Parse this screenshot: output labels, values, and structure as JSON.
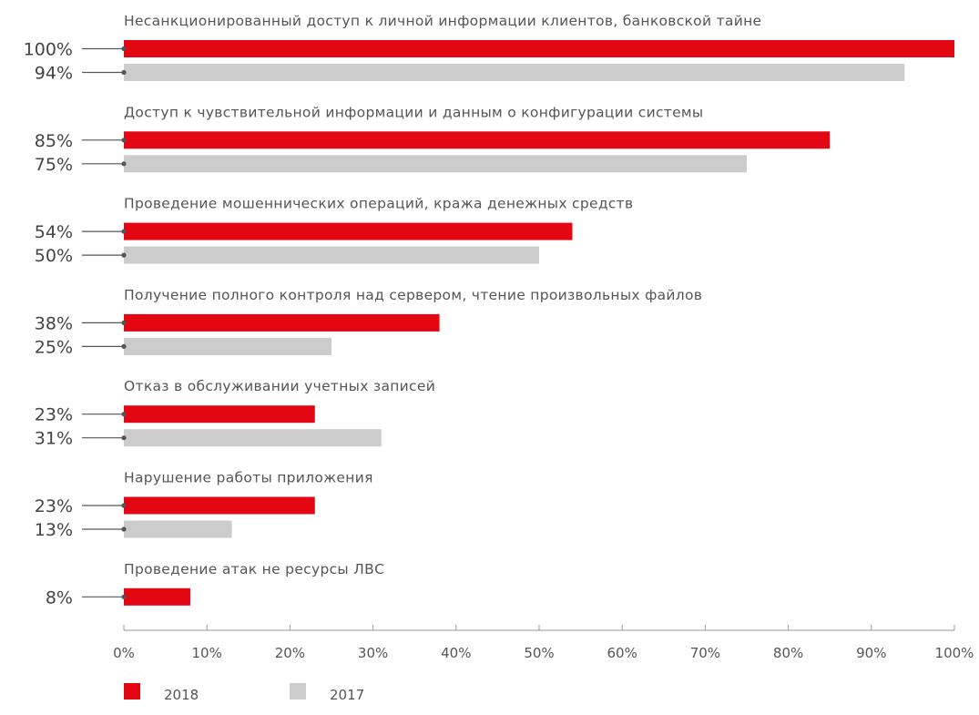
{
  "chart_data": {
    "type": "bar",
    "orientation": "horizontal",
    "categories": [
      "Несанкционированный доступ к личной информации клиентов, банковской тайне",
      "Доступ к чувствительной информации и данным о конфигурации системы",
      "Проведение мошеннических операций, кража денежных средств",
      "Получение полного контроля над сервером, чтение произвольных файлов",
      "Отказ в обслуживании учетных записей",
      "Нарушение работы приложения",
      "Проведение атак не ресурсы ЛВС"
    ],
    "series": [
      {
        "name": "2018",
        "color": "#e30613",
        "values": [
          100,
          85,
          54,
          38,
          23,
          23,
          8
        ],
        "labels": [
          "100%",
          "85%",
          "54%",
          "38%",
          "23%",
          "23%",
          "8%"
        ]
      },
      {
        "name": "2017",
        "color": "#cccccc",
        "values": [
          94,
          75,
          50,
          25,
          31,
          13,
          null
        ],
        "labels": [
          "94%",
          "75%",
          "50%",
          "25%",
          "31%",
          "13%",
          null
        ]
      }
    ],
    "xlim": [
      0,
      100
    ],
    "x_ticks": [
      0,
      10,
      20,
      30,
      40,
      50,
      60,
      70,
      80,
      90,
      100
    ],
    "x_tick_labels": [
      "0%",
      "10%",
      "20%",
      "30%",
      "40%",
      "50%",
      "60%",
      "70%",
      "80%",
      "90%",
      "100%"
    ],
    "legend_position": "bottom-left",
    "grid": false,
    "title": "",
    "xlabel": "",
    "ylabel": ""
  }
}
